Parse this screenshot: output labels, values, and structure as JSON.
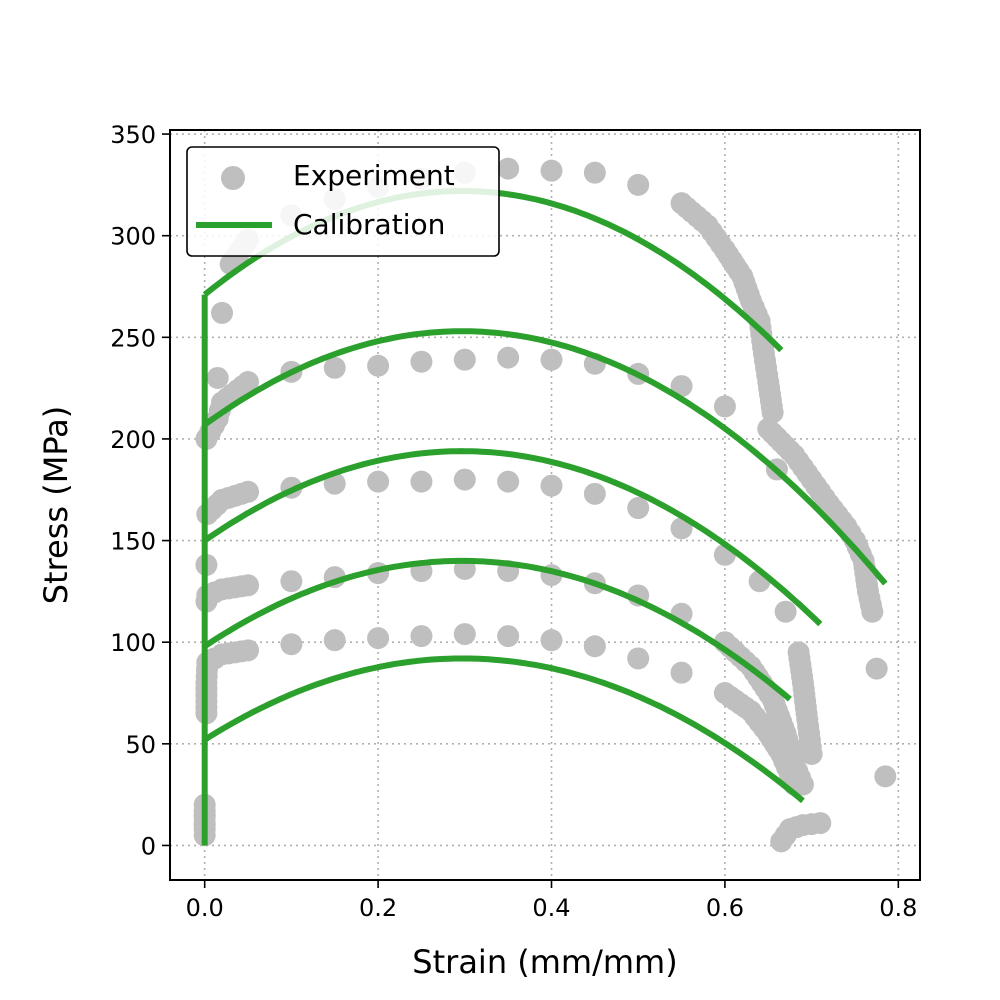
{
  "chart_data": {
    "type": "scatter",
    "xlabel": "Strain (mm/mm)",
    "ylabel": "Stress (MPa)",
    "xlim": [
      -0.04,
      0.825
    ],
    "ylim": [
      -17,
      352
    ],
    "xticks": [
      0.0,
      0.2,
      0.4,
      0.6,
      0.8
    ],
    "xtick_labels": [
      "0.0",
      "0.2",
      "0.4",
      "0.6",
      "0.8"
    ],
    "yticks": [
      0,
      50,
      100,
      150,
      200,
      250,
      300,
      350
    ],
    "ytick_labels": [
      "0",
      "50",
      "100",
      "150",
      "200",
      "250",
      "300",
      "350"
    ],
    "grid": true,
    "legend_position": "top-left",
    "colors": {
      "experiment": "#bfbfbf",
      "calibration": "#2ca02c"
    },
    "series": [
      {
        "name": "Experiment",
        "kind": "scatter",
        "curves": [
          [
            [
              0,
              5
            ],
            [
              0,
              20
            ],
            [
              0.002,
              65
            ],
            [
              0.002,
              80
            ],
            [
              0.003,
              90
            ],
            [
              0.02,
              94
            ],
            [
              0.05,
              96
            ],
            [
              0.1,
              99
            ],
            [
              0.15,
              101
            ],
            [
              0.2,
              102
            ],
            [
              0.25,
              103
            ],
            [
              0.3,
              104
            ],
            [
              0.35,
              103
            ],
            [
              0.4,
              101
            ],
            [
              0.45,
              98
            ],
            [
              0.5,
              92
            ],
            [
              0.55,
              85
            ],
            [
              0.6,
              75
            ],
            [
              0.63,
              66
            ],
            [
              0.65,
              55
            ],
            [
              0.665,
              45
            ],
            [
              0.675,
              35
            ],
            [
              0.68,
              30
            ]
          ],
          [
            [
              0,
              10
            ],
            [
              0.002,
              120
            ],
            [
              0.003,
              123
            ],
            [
              0.02,
              126
            ],
            [
              0.05,
              128
            ],
            [
              0.1,
              130
            ],
            [
              0.15,
              132
            ],
            [
              0.2,
              134
            ],
            [
              0.25,
              135
            ],
            [
              0.3,
              136
            ],
            [
              0.35,
              135
            ],
            [
              0.4,
              133
            ],
            [
              0.45,
              129
            ],
            [
              0.5,
              123
            ],
            [
              0.55,
              114
            ],
            [
              0.6,
              100
            ],
            [
              0.63,
              88
            ],
            [
              0.655,
              72
            ],
            [
              0.67,
              55
            ],
            [
              0.68,
              40
            ],
            [
              0.69,
              30
            ],
            [
              0.665,
              2
            ],
            [
              0.675,
              8
            ],
            [
              0.69,
              10
            ],
            [
              0.71,
              11
            ]
          ],
          [
            [
              0,
              15
            ],
            [
              0.002,
              138
            ],
            [
              0.003,
              163
            ],
            [
              0.02,
              170
            ],
            [
              0.05,
              174
            ],
            [
              0.1,
              176
            ],
            [
              0.15,
              178
            ],
            [
              0.2,
              179
            ],
            [
              0.25,
              179
            ],
            [
              0.3,
              180
            ],
            [
              0.35,
              179
            ],
            [
              0.4,
              177
            ],
            [
              0.45,
              173
            ],
            [
              0.5,
              166
            ],
            [
              0.55,
              156
            ],
            [
              0.6,
              143
            ],
            [
              0.64,
              130
            ],
            [
              0.67,
              115
            ],
            [
              0.685,
              95
            ],
            [
              0.69,
              80
            ],
            [
              0.695,
              62
            ],
            [
              0.7,
              45
            ]
          ],
          [
            [
              0.002,
              200
            ],
            [
              0.015,
              210
            ],
            [
              0.02,
              218
            ],
            [
              0.05,
              228
            ],
            [
              0.1,
              233
            ],
            [
              0.15,
              235
            ],
            [
              0.2,
              236
            ],
            [
              0.25,
              238
            ],
            [
              0.3,
              239
            ],
            [
              0.35,
              240
            ],
            [
              0.4,
              239
            ],
            [
              0.45,
              237
            ],
            [
              0.5,
              232
            ],
            [
              0.55,
              226
            ],
            [
              0.6,
              216
            ],
            [
              0.65,
              205
            ],
            [
              0.68,
              192
            ],
            [
              0.7,
              180
            ],
            [
              0.72,
              168
            ],
            [
              0.74,
              157
            ],
            [
              0.75,
              150
            ],
            [
              0.76,
              140
            ],
            [
              0.765,
              125
            ],
            [
              0.77,
              115
            ],
            [
              0.775,
              87
            ],
            [
              0.785,
              34
            ]
          ],
          [
            [
              0.015,
              230
            ],
            [
              0.02,
              262
            ],
            [
              0.03,
              286
            ],
            [
              0.05,
              298
            ],
            [
              0.1,
              310
            ],
            [
              0.15,
              318
            ],
            [
              0.2,
              324
            ],
            [
              0.25,
              328
            ],
            [
              0.3,
              331
            ],
            [
              0.35,
              333
            ],
            [
              0.4,
              332
            ],
            [
              0.45,
              331
            ],
            [
              0.5,
              325
            ],
            [
              0.55,
              316
            ],
            [
              0.58,
              305
            ],
            [
              0.6,
              293
            ],
            [
              0.62,
              280
            ],
            [
              0.63,
              268
            ],
            [
              0.64,
              258
            ],
            [
              0.645,
              242
            ],
            [
              0.65,
              228
            ],
            [
              0.655,
              213
            ],
            [
              0.66,
              185
            ]
          ]
        ]
      },
      {
        "name": "Calibration",
        "kind": "line",
        "vertical": [
          [
            0,
            0
          ],
          [
            0,
            271
          ]
        ],
        "curves": [
          {
            "y0": 52,
            "peak_x": 0.297,
            "peak_y": 92,
            "x_end": 0.69
          },
          {
            "y0": 98,
            "peak_x": 0.297,
            "peak_y": 140,
            "x_end": 0.675
          },
          {
            "y0": 150,
            "peak_x": 0.297,
            "peak_y": 194,
            "x_end": 0.71
          },
          {
            "y0": 207,
            "peak_x": 0.297,
            "peak_y": 253,
            "x_end": 0.785
          },
          {
            "y0": 271,
            "peak_x": 0.297,
            "peak_y": 322,
            "x_end": 0.665
          }
        ]
      }
    ]
  }
}
